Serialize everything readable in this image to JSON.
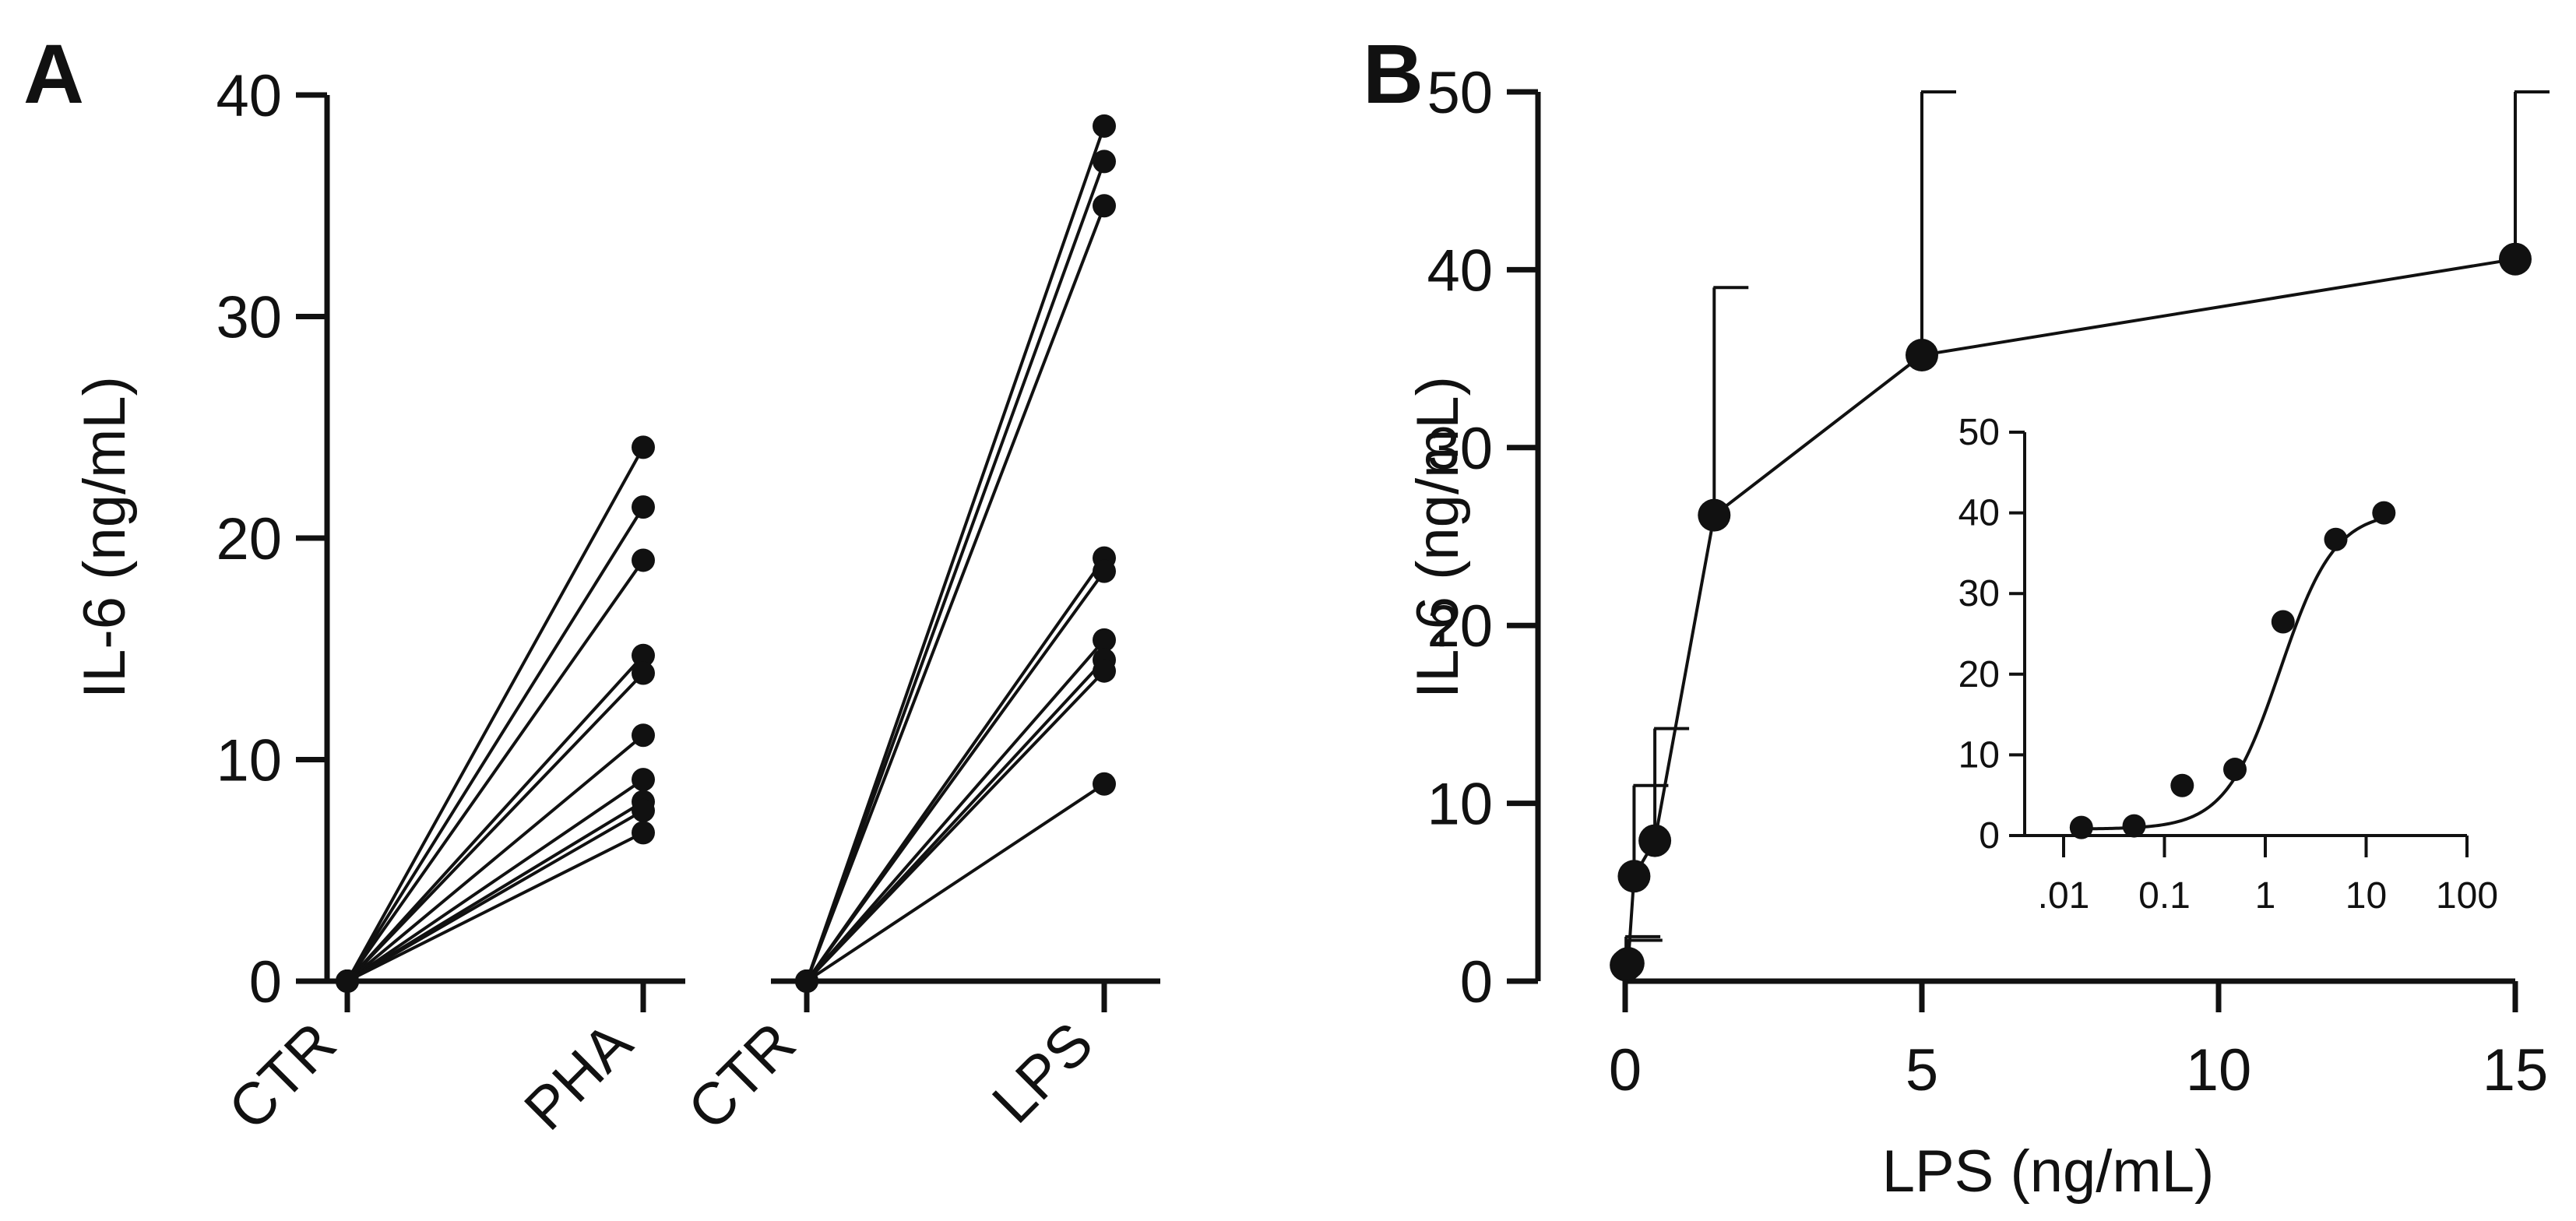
{
  "chart_data": [
    {
      "panel": "A",
      "type": "line",
      "ylabel": "IL-6 (ng/mL)",
      "ylim": [
        0,
        40
      ],
      "yticks": [
        0,
        10,
        20,
        30,
        40
      ],
      "grid": false,
      "groups": [
        {
          "categories": [
            "CTR",
            "PHA"
          ],
          "pairs": [
            [
              0,
              24.1
            ],
            [
              0,
              21.4
            ],
            [
              0,
              19.0
            ],
            [
              0,
              14.7
            ],
            [
              0,
              13.9
            ],
            [
              0,
              11.1
            ],
            [
              0,
              9.1
            ],
            [
              0,
              8.1
            ],
            [
              0,
              7.7
            ],
            [
              0,
              6.7
            ]
          ]
        },
        {
          "categories": [
            "CTR",
            "LPS"
          ],
          "pairs": [
            [
              0,
              38.6
            ],
            [
              0,
              37.0
            ],
            [
              0,
              35.0
            ],
            [
              0,
              19.1
            ],
            [
              0,
              18.5
            ],
            [
              0,
              15.4
            ],
            [
              0,
              14.5
            ],
            [
              0,
              14.0
            ],
            [
              0,
              8.9
            ]
          ]
        }
      ]
    },
    {
      "panel": "B",
      "type": "line",
      "xlabel": "LPS (ng/mL)",
      "ylabel": "IL-6 (ng/mL)",
      "xlim": [
        0,
        15
      ],
      "ylim": [
        0,
        50
      ],
      "xticks": [
        0,
        5,
        10,
        15
      ],
      "yticks": [
        0,
        10,
        20,
        30,
        40,
        50
      ],
      "grid": false,
      "series": [
        {
          "x": [
            0.015,
            0.05,
            0.15,
            0.5,
            1.5,
            5,
            15
          ],
          "y": [
            0.9,
            1.0,
            5.9,
            7.9,
            26.2,
            35.2,
            40.6
          ],
          "error_upper": [
            2.5,
            2.3,
            11.0,
            14.2,
            39.0,
            50.0,
            50.0
          ]
        }
      ],
      "inset": {
        "type": "line",
        "xscale": "log",
        "xlim": [
          0.01,
          100
        ],
        "ylim": [
          0,
          50
        ],
        "xticks": [
          ".01",
          "0.1",
          "1",
          "10",
          "100"
        ],
        "yticks": [
          0,
          10,
          20,
          30,
          40,
          50
        ],
        "points": {
          "x": [
            0.015,
            0.05,
            0.15,
            0.5,
            1.5,
            5,
            15
          ],
          "y": [
            1.0,
            1.2,
            6.2,
            8.2,
            26.5,
            36.7,
            40.0
          ]
        },
        "fit_curve": "sigmoidal"
      }
    }
  ],
  "panel_labels": [
    "A",
    "B"
  ]
}
